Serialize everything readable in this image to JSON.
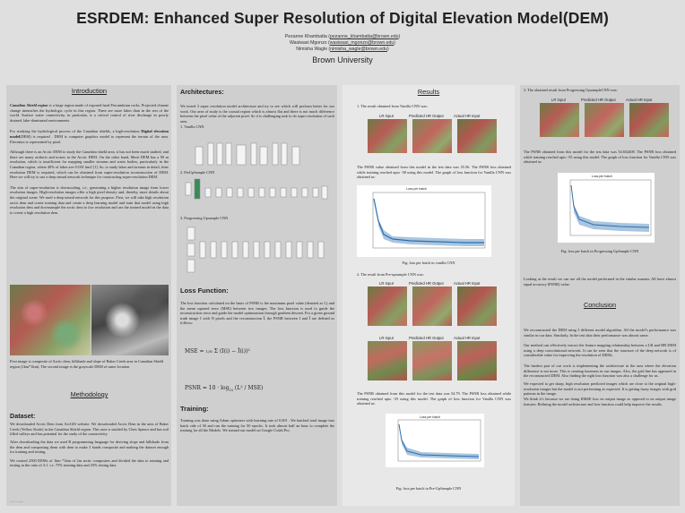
{
  "header": {
    "title": "ESRDEM: Enhanced Super Resolution of Digital Elevation Model(DEM)",
    "authors": [
      {
        "name": "Pezanne Khambatta",
        "email": "pezanne_khambatta@brown.edu"
      },
      {
        "name": "Wasiwasi Mgonzo",
        "email": "wasiwasi_mgonzo@brown.edu"
      },
      {
        "name": "Nimisha Wagle",
        "email": "nimisha_wagle@brown.edu"
      }
    ],
    "university": "Brown University"
  },
  "intro": {
    "title": "Introduction",
    "p1_lead": "Canadian Shield region",
    "p1": " is a large region made of exposed hard Precambrian rocks. Projected climate change intensifies the hydrologic cycle in this region. There are more lakes than in the rest of the world. Surface water connectivity, in particular, is a critical control of river discharge in poorly drained, lake-dominated environments.",
    "p2_a": "For studying the hydrological process of the Canadian shields, a high-resolution ",
    "p2_bold": "Digital elevation model",
    "p2_b": "(DEM) is required . DEM is computer graphics model to represent the terrain of the area. Elevation is represented by pixel.",
    "p3": "Although there is an Arctic DEM to study the Canadian shield area, it has not been much studied, and there are many artifacts and noises in the Arctic DEM. On the other hand, Merit DEM has a 90 m resolution, which is insufficient for mapping smaller streams and water bodies, particularly in the Canadian region, where 40% of lakes are<0.001 km2 [1]. So, to study lakes and streams in detail, finer resolution DEM is required, which can be obtained from super-resolution reconstruction of DEM. Here we will try to use a deep neural network technique for constructing super-resolution DEM.",
    "p4": "The aim of super-resolution is downscaling, i.e., generating a higher resolution image from lower resolution images. High-resolution images offer a high pixel density and, thereby, more details about the original scene. We used a deep neural network for this purpose. First, we will take high resolution arctic dem and create training data and create a deep learning model and train that model using high resolution dem and downsample the arctic dem to low resolution and use the trained model in the data to create a high resolution dem.",
    "fig_caption": "First image is composite of Arctic dem, hillshade and slope of Baker Creek area in Canadian Shield region (1km*1km). The second image is the grayscale DEM of same location"
  },
  "methodology": {
    "title": "Methodology",
    "dataset_title": "Dataset:",
    "dataset_p1": "We downloaded Arctic Dem from ArcGIS website. We downloaded Arctic Dem in the area of Baker Creek (Yellow Knife) in the Canadian Shield region. This area is studied by Chris Spence and has soil filled valleys and has potential for the study of the connectivity.",
    "dataset_p2": "After downloading the data we used R programming language for deriving slope and hillshade from the dem and composting them with dem to make 3 bands composite and making the dataset enough for training and testing.",
    "dataset_p3": "We created 2500 DEMs of 1km *1km of 2m arctic composites and divided the data to training and testing in the ratio of 3:1. i.e. 75% training data and 25% testing data",
    "footnote": "poster template"
  },
  "architecture": {
    "title": "Architectures:",
    "intro": "We tested 3 super resolution model architecture and try to see which will perform better for our work. Our area of study is the coastal region which is almost flat and there is not much difference between the pixel value of the adjacent pixel. So it is challenging task to do super resolution of such area.",
    "item1": "1.   Vanilla CNN",
    "item2": "2. PreUpSample CNN",
    "item3": "3. Progressing Upsample CNN"
  },
  "loss": {
    "title": "Loss Function:",
    "text": "The loss function calculated on the basis of  PSNR is the maximum pixel value (denoted as L) and the mean squared error (MSE) between two images. The loss function is used to guide the reconstruction error and guide the model optimization through gradient descent. For a given ground truth image I with N pixels and the reconstruction Î, the PSNR between I and Î are defined as follows:",
    "eq1": "MSE = 1/N Σ (I(i) − Î(i))²",
    "eq2": "PSNR = 10 · log₁₀ (L² / MSE)"
  },
  "training": {
    "title": "Training:",
    "text": "Training was done using Adam optimizer with learning rate of 0.001 . We batched total image into batch side of 56 and run the training for 50 epochs. It took almost half an hour to complete the training for all the Models. We trained out model on Google Colab Pro."
  },
  "results": {
    "title": "Results",
    "r1": "1. The result obtained from Vanilla CNN was:",
    "img_titles": [
      "LR Input",
      "Predicted HR Output",
      "Actual HR Input"
    ],
    "r1_text": "The PSNR value obtained from this model in the test data was 55.56. The PSNR loss obtained while training reached upto -58 using this model. The graph of loss function for Vanilla CNN was obtained as:",
    "plot_title": "Loss per batch",
    "cap1": "Fig: loss per batch in vanilla CNN",
    "r2": "2. The result from Pre-upsample CNN was:",
    "r2_text": "The PSNR obtained from this model for the test data was 54.79. The PSNR loss obtained while training reached upto -55 using this model. The graph of loss function for Vanilla CNN was obtained as:",
    "cap2": "Fig: loss per batch in Pre-UpSample CNN"
  },
  "right": {
    "r3": "3. The obtained result from Progressing UpsampleCNN was:",
    "r3_text": "The PSNR obtained from this model for the test data was 54.654408. The PSNR loss obtained while training reached upto -55 using this model. The graph of loss function for Vanilla CNN was obtained as:",
    "cap3": "Fig: loss per batch in Progressing UpSample CNN",
    "observation": "Looking at the result we can see all the model performed in the similar manner. All have almost equal accuracy (PSNR) value.",
    "conclusion_title": "Conclusion",
    "c1": "We reconstructed the DEM using 3 different model algorithm. All the model’s performance was similar in our data. Similarly, In the test data their performance was almost same.",
    "c2": "Our method can effectively extract the feature mapping relationship between a LR and HR DEM using a deep convolutional network. It can be seen that the structure of the deep network is of considerable value for improving the resolution of DEMs.",
    "c3": "The hardest part of our work is implementing the architecture in the area where the elevation difference is not more. This is creating fuzziness in our images. Also, the grid line has appeared in the reconstructed DEM. Also finding the right loss function was also a challenge for us.",
    "c4": "We expected to get sharp, high resolution predicted images which are close to the original high-resolution images but the model is not performing as expected. It is getting fuzzy images with grid patterns in the image.",
    "c5": "We think it’s because we are doing RMSE loss on output image as opposed to on output image features. Refining the model architecture and loss function could help improve the results."
  },
  "colors": {
    "background": "#dfdfdf",
    "panel": "#cfcfcf",
    "plot_line": "#2a6fb0"
  }
}
